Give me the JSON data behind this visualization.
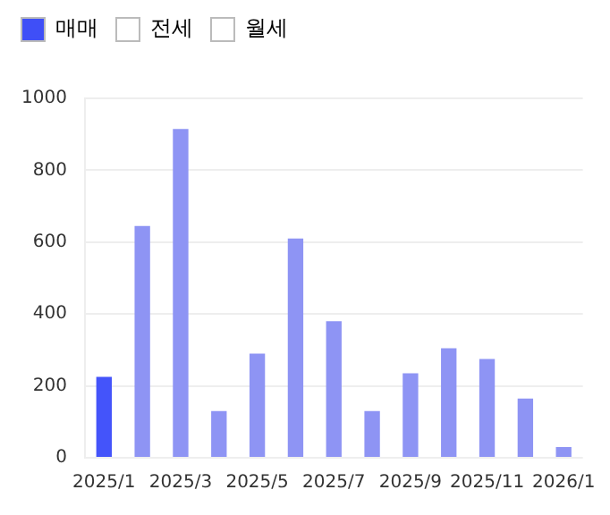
{
  "chart_data": {
    "type": "bar",
    "categories": [
      "2025/1",
      null,
      "2025/3",
      null,
      "2025/5",
      null,
      "2025/7",
      null,
      "2025/9",
      null,
      "2025/11",
      null,
      "2026/1"
    ],
    "series": [
      {
        "name": "매매",
        "color": "#3f4ff7",
        "colors": [
          "#4454fa",
          "#8e94f4",
          "#8e94f4",
          "#8e94f4",
          "#8e94f4",
          "#8e94f4",
          "#8e94f4",
          "#8e94f4",
          "#8e94f4",
          "#8e94f4",
          "#8e94f4",
          "#8e94f4",
          "#8e94f4"
        ],
        "values": [
          225,
          645,
          915,
          130,
          290,
          610,
          380,
          130,
          235,
          305,
          275,
          165,
          30
        ]
      },
      {
        "name": "전세",
        "color": "#ffffff",
        "values": [
          null,
          null,
          null,
          null,
          null,
          null,
          null,
          null,
          null,
          null,
          null,
          null,
          null
        ]
      },
      {
        "name": "월세",
        "color": "#ffffff",
        "values": [
          null,
          null,
          null,
          null,
          null,
          null,
          null,
          null,
          null,
          null,
          null,
          null,
          null
        ]
      }
    ],
    "ylim": [
      0,
      1000
    ],
    "yticks": [
      0,
      200,
      400,
      600,
      800,
      1000
    ],
    "grid": "y",
    "legend": "top left"
  }
}
